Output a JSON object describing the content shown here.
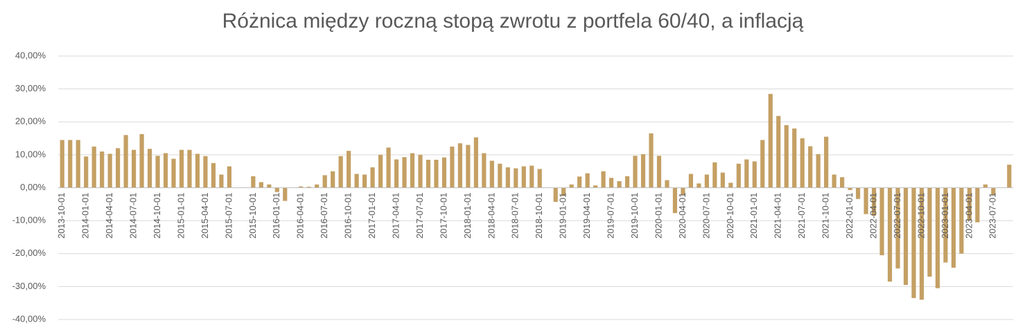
{
  "chart_data": {
    "type": "bar",
    "title": "Różnica między roczną stopą zwrotu z portfela 60/40, a inflacją",
    "color": "#c4a064",
    "grid": true,
    "ylim": [
      -40,
      40
    ],
    "yticks": [
      {
        "value": -40,
        "label": "-40,00%"
      },
      {
        "value": -30,
        "label": "-30,00%"
      },
      {
        "value": -20,
        "label": "-20,00%"
      },
      {
        "value": -10,
        "label": "-10,00%"
      },
      {
        "value": 0,
        "label": "0,00%"
      },
      {
        "value": 10,
        "label": "10,00%"
      },
      {
        "value": 20,
        "label": "20,00%"
      },
      {
        "value": 30,
        "label": "30,00%"
      },
      {
        "value": 40,
        "label": "40,00%"
      }
    ],
    "categories": [
      "2013-10-01",
      null,
      null,
      "2014-01-01",
      null,
      null,
      "2014-04-01",
      null,
      null,
      "2014-07-01",
      null,
      null,
      "2014-10-01",
      null,
      null,
      "2015-01-01",
      null,
      null,
      "2015-04-01",
      null,
      null,
      "2015-07-01",
      null,
      null,
      "2015-10-01",
      null,
      null,
      "2016-01-01",
      null,
      null,
      "2016-04-01",
      null,
      null,
      "2016-07-01",
      null,
      null,
      "2016-10-01",
      null,
      null,
      "2017-01-01",
      null,
      null,
      "2017-04-01",
      null,
      null,
      "2017-07-01",
      null,
      null,
      "2017-10-01",
      null,
      null,
      "2018-01-01",
      null,
      null,
      "2018-04-01",
      null,
      null,
      "2018-07-01",
      null,
      null,
      "2018-10-01",
      null,
      null,
      "2019-01-01",
      null,
      null,
      "2019-04-01",
      null,
      null,
      "2019-07-01",
      null,
      null,
      "2019-10-01",
      null,
      null,
      "2020-01-01",
      null,
      null,
      "2020-04-01",
      null,
      null,
      "2020-07-01",
      null,
      null,
      "2020-10-01",
      null,
      null,
      "2021-01-01",
      null,
      null,
      "2021-04-01",
      null,
      null,
      "2021-07-01",
      null,
      null,
      "2021-10-01",
      null,
      null,
      "2022-01-01",
      null,
      null,
      "2022-04-01",
      null,
      null,
      "2022-07-01",
      null,
      null,
      "2022-10-01",
      null,
      null,
      "2023-01-01",
      null,
      null,
      "2023-04-01",
      null,
      null,
      "2023-07-01",
      null,
      null
    ],
    "values": [
      14.5,
      14.5,
      14.5,
      9.5,
      12.5,
      11,
      10.3,
      12,
      16,
      11.5,
      16.3,
      11.8,
      9.7,
      10.5,
      8.8,
      11.5,
      11.5,
      10.3,
      9.6,
      7.5,
      4,
      6.5,
      0,
      0,
      3.5,
      1.7,
      1.0,
      -1.3,
      -4,
      0,
      0.4,
      0.3,
      1.0,
      3.8,
      5,
      9.6,
      11.2,
      4.2,
      4,
      6.2,
      10,
      12.2,
      8.6,
      9.3,
      10.5,
      10,
      8.5,
      8.5,
      9.2,
      12.5,
      13.5,
      13,
      15.3,
      10.5,
      8.2,
      7.3,
      6.2,
      5.9,
      6.5,
      6.7,
      5.7,
      0,
      -4.3,
      -2.5,
      1.0,
      3.4,
      4.4,
      0.7,
      5,
      3,
      2,
      3.5,
      9.7,
      10.2,
      16.5,
      9.7,
      2.3,
      -7.7,
      -2.3,
      4.2,
      1.3,
      4,
      7.7,
      4.6,
      1.5,
      7.3,
      8.6,
      8,
      14.5,
      28.5,
      21.8,
      19,
      18,
      15,
      12.6,
      10.2,
      15.5,
      4,
      3.2,
      -0.7,
      -3.4,
      -8,
      -8.5,
      -20.5,
      -28.5,
      -24.5,
      -29.5,
      -33.5,
      -34,
      -27,
      -30.5,
      -22.7,
      -24.3,
      -20,
      -10,
      -10.5,
      1,
      -2.3,
      0,
      7
    ]
  }
}
